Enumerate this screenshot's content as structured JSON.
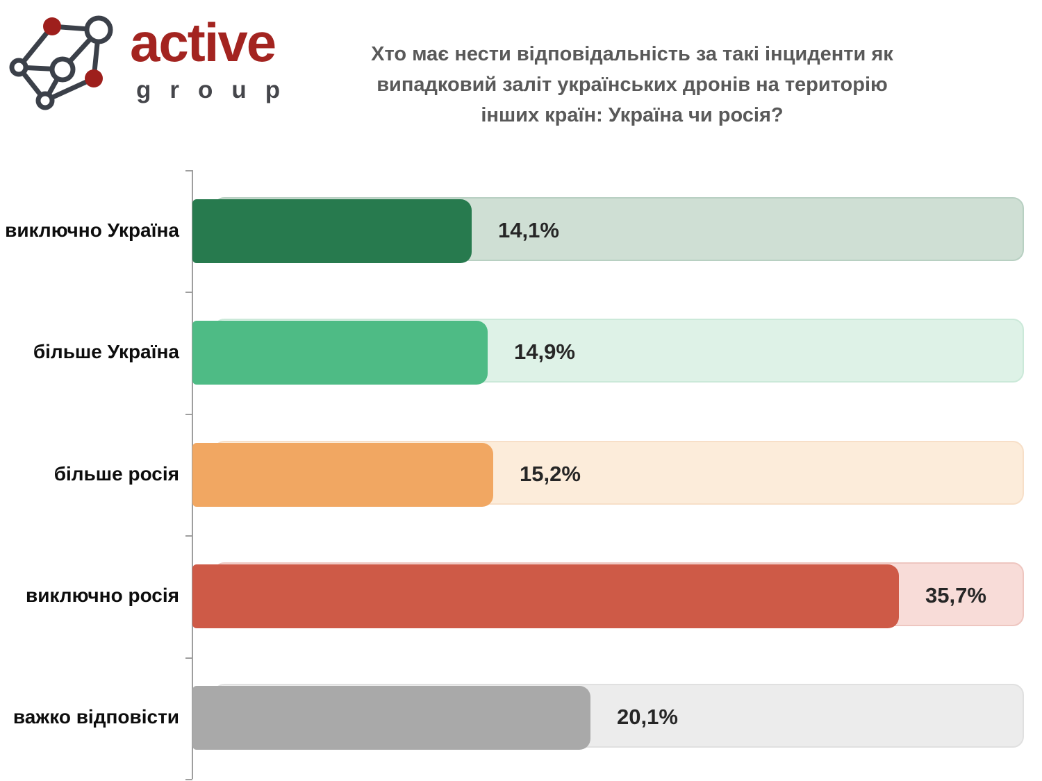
{
  "logo": {
    "brand": "active",
    "brand_sub": "group",
    "brand_color": "#a32420",
    "brand_sub_color": "#45464b",
    "icon_node_color": "#9e1f1c",
    "icon_line_color": "#3b4049"
  },
  "header": {
    "title_lines": [
      "Хто має нести відповідальність за такі інциденти як",
      "випадковий заліт українських дронів на територію",
      "інших країн: Україна чи росія?"
    ],
    "title_color": "#595959"
  },
  "chart_data": {
    "type": "bar",
    "orientation": "horizontal",
    "title": "Хто має нести відповідальність за такі інциденти як випадковий заліт українських дронів на територію інших країн: Україна чи росія?",
    "categories": [
      "виключно Україна",
      "більше Україна",
      "більше росія",
      "виключно росія",
      "важко відповісти"
    ],
    "values": [
      14.1,
      14.9,
      15.2,
      35.7,
      20.1
    ],
    "value_labels": [
      "14,1%",
      "14,9%",
      "15,2%",
      "35,7%",
      "20,1%"
    ],
    "bar_colors": [
      "#277a4e",
      "#4ebb85",
      "#f1a762",
      "#ce5a47",
      "#a9a9a9"
    ],
    "track_fill_colors": [
      "#cfdfd4",
      "#def2e7",
      "#fcecda",
      "#f8dcd8",
      "#ececec"
    ],
    "track_border_colors": [
      "#b8d0c2",
      "#cbe9d9",
      "#f7dfc8",
      "#eec6c0",
      "#e0e0e0"
    ],
    "value_text_color": "#262626",
    "axis_color": "#9e9e9e",
    "xlim": [
      0,
      42
    ],
    "grid": false,
    "legend": false
  }
}
